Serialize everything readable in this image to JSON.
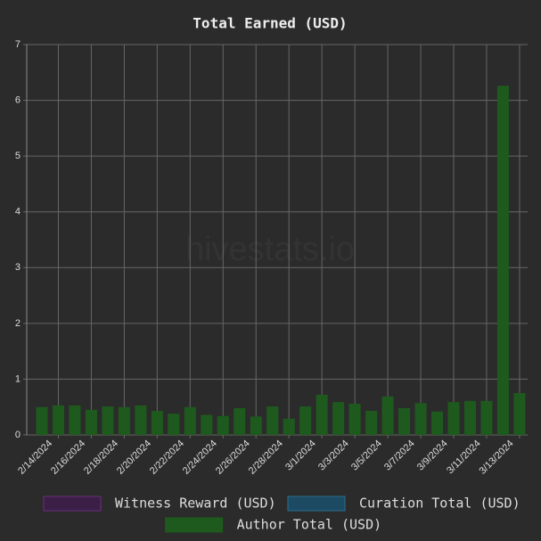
{
  "chart_data": {
    "type": "stacked-bar",
    "title": "Total Earned (USD)",
    "watermark": "hivestats.io",
    "categories": [
      "2/14/2024",
      null,
      "2/16/2024",
      null,
      "2/18/2024",
      null,
      "2/20/2024",
      null,
      "2/22/2024",
      null,
      "2/24/2024",
      null,
      "2/26/2024",
      null,
      "2/28/2024",
      null,
      "3/1/2024",
      null,
      "3/3/2024",
      null,
      "3/5/2024",
      null,
      "3/7/2024",
      null,
      "3/9/2024",
      null,
      "3/11/2024",
      null,
      "3/13/2024",
      null
    ],
    "series": [
      {
        "name": "Witness Reward (USD)",
        "color": "#3b1f47",
        "border": "#6a2f7a",
        "values": [
          0,
          0,
          0,
          0,
          0,
          0,
          0,
          0,
          0,
          0,
          0,
          0,
          0,
          0,
          0,
          0,
          0,
          0,
          0,
          0,
          0,
          0,
          0,
          0,
          0,
          0,
          0,
          0,
          0,
          0
        ]
      },
      {
        "name": "Curation Total (USD)",
        "color": "#1d4a63",
        "border": "#2a6f92",
        "values": [
          0,
          0,
          0,
          0,
          0,
          0,
          0,
          0,
          0,
          0,
          0,
          0,
          0,
          0,
          0,
          0,
          0,
          0,
          0,
          0,
          0,
          0,
          0,
          0,
          0,
          0,
          0,
          0,
          0,
          0
        ]
      },
      {
        "name": "Author Total (USD)",
        "color": "#1e5a1e",
        "border": "#1e5a1e",
        "values": [
          0.5,
          0.53,
          0.53,
          0.45,
          0.51,
          0.5,
          0.53,
          0.43,
          0.38,
          0.5,
          0.36,
          0.34,
          0.48,
          0.33,
          0.51,
          0.29,
          0.51,
          0.72,
          0.59,
          0.56,
          0.43,
          0.69,
          0.48,
          0.57,
          0.42,
          0.59,
          0.61,
          0.61,
          6.26,
          0.75
        ]
      }
    ],
    "ylim": [
      0,
      7
    ],
    "yticks": [
      0,
      1,
      2,
      3,
      4,
      5,
      6,
      7
    ],
    "grid": true
  }
}
